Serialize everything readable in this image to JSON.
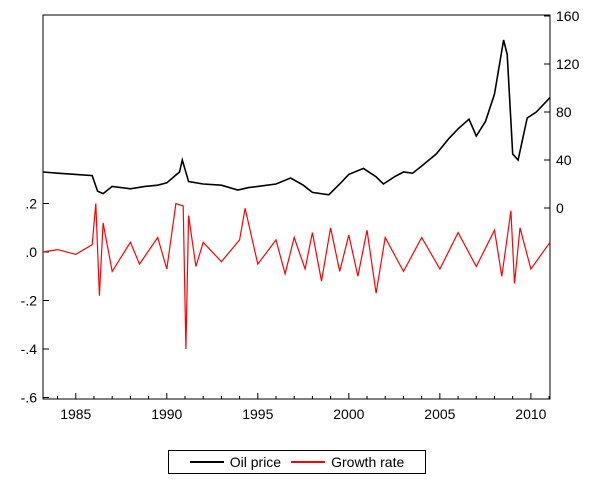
{
  "chart_data": {
    "type": "line",
    "title": "",
    "xlabel": "",
    "x_ticks": [
      "1985",
      "1990",
      "1995",
      "2000",
      "2005",
      "2010"
    ],
    "xlim": [
      1983.2,
      2011.05
    ],
    "grid": false,
    "legend_position": "bottom-center",
    "series": [
      {
        "name": "Oil price",
        "axis": "right",
        "color": "#000000",
        "x": [
          1983.2,
          1984.0,
          1985.0,
          1985.9,
          1986.2,
          1986.5,
          1987.0,
          1988.0,
          1988.8,
          1989.5,
          1990.0,
          1990.7,
          1990.85,
          1991.2,
          1992.0,
          1993.0,
          1993.9,
          1994.5,
          1995.0,
          1996.0,
          1996.8,
          1997.5,
          1998.0,
          1998.9,
          1999.5,
          2000.0,
          2000.8,
          2001.5,
          2001.9,
          2002.5,
          2003.0,
          2003.5,
          2004.0,
          2004.8,
          2005.5,
          2006.0,
          2006.6,
          2007.0,
          2007.5,
          2008.0,
          2008.5,
          2008.7,
          2009.0,
          2009.3,
          2009.8,
          2010.3,
          2010.8,
          2011.05
        ],
        "y": [
          30,
          29,
          28,
          27,
          14,
          12,
          18,
          16,
          18,
          19,
          21,
          30,
          40,
          22,
          20,
          19,
          15,
          17,
          18,
          20,
          25,
          19,
          13,
          11,
          20,
          28,
          33,
          26,
          20,
          26,
          30,
          29,
          35,
          45,
          58,
          66,
          74,
          60,
          72,
          95,
          140,
          128,
          45,
          40,
          75,
          80,
          88,
          92
        ]
      },
      {
        "name": "Growth rate",
        "axis": "left",
        "color": "#ff0000",
        "x": [
          1983.2,
          1984.0,
          1985.0,
          1985.9,
          1986.1,
          1986.3,
          1986.5,
          1987.0,
          1988.0,
          1988.5,
          1989.5,
          1990.0,
          1990.5,
          1990.9,
          1991.05,
          1991.2,
          1991.6,
          1992.0,
          1993.0,
          1994.0,
          1994.3,
          1995.0,
          1996.0,
          1996.5,
          1997.0,
          1997.6,
          1998.0,
          1998.5,
          1999.0,
          1999.5,
          2000.0,
          2000.5,
          2001.0,
          2001.5,
          2002.0,
          2003.0,
          2004.0,
          2005.0,
          2006.0,
          2007.0,
          2008.0,
          2008.4,
          2008.9,
          2009.1,
          2009.4,
          2010.0,
          2011.05
        ],
        "y": [
          0.0,
          0.01,
          -0.01,
          0.03,
          0.2,
          -0.18,
          0.12,
          -0.08,
          0.04,
          -0.05,
          0.06,
          -0.07,
          0.2,
          0.19,
          -0.4,
          0.15,
          -0.06,
          0.04,
          -0.04,
          0.05,
          0.18,
          -0.05,
          0.05,
          -0.09,
          0.06,
          -0.07,
          0.08,
          -0.12,
          0.1,
          -0.08,
          0.07,
          -0.1,
          0.09,
          -0.17,
          0.06,
          -0.08,
          0.06,
          -0.07,
          0.08,
          -0.06,
          0.09,
          -0.1,
          0.17,
          -0.13,
          0.1,
          -0.07,
          0.04
        ]
      }
    ],
    "left_axis": {
      "ticks": [
        ".2",
        ".0",
        "-.2",
        "-.4",
        "-.6"
      ],
      "ylim": [
        -0.6,
        0.2
      ]
    },
    "right_axis": {
      "ticks": [
        "0",
        "40",
        "80",
        "120",
        "160"
      ],
      "ylim": [
        0,
        160
      ]
    }
  },
  "legend": {
    "oil_label": "Oil price",
    "growth_label": "Growth rate"
  }
}
